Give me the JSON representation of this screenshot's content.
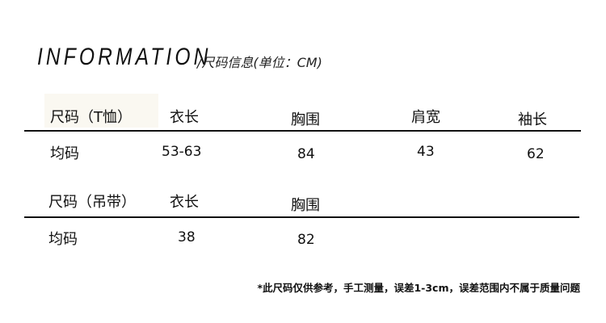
{
  "title": "INFORMATION",
  "subtitle": "/尺码信息(单位：CM)",
  "tables": [
    {
      "headers": [
        "尺码（T恤）",
        "衣长",
        "胸围",
        "肩宽",
        "袖长"
      ],
      "rows": [
        [
          "均码",
          "53-63",
          "84",
          "43",
          "62"
        ]
      ]
    },
    {
      "headers": [
        "尺码（吊带）",
        "衣长",
        "胸围"
      ],
      "rows": [
        [
          "均码",
          "38",
          "82"
        ]
      ]
    }
  ],
  "note": "*此尺码仅供参考，手工测量，误差1-3cm，误差范围内不属于质量问题"
}
